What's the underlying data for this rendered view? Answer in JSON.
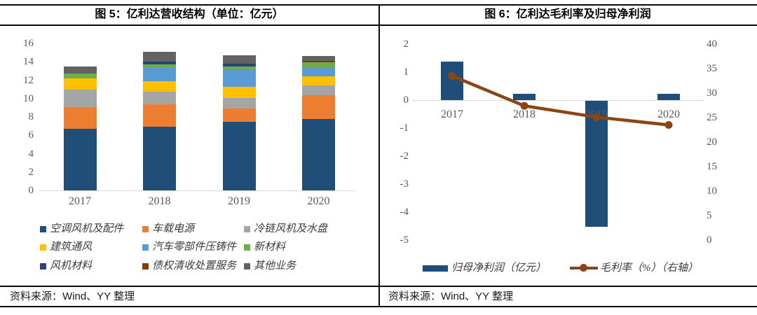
{
  "panels": {
    "left": {
      "title": "图 5：亿利达营收结构（单位：亿元）",
      "source": "资料来源：Wind、YY 整理"
    },
    "right": {
      "title": "图 6：亿利达毛利率及归母净利润",
      "source": "资料来源：Wind、YY 整理"
    }
  },
  "colors": {
    "border": "#0a0a0a",
    "axis_line": "#d9d9d9",
    "tick_text": "#595959",
    "bar_blue": "#1F4E79",
    "line_brown": "#8B4513"
  },
  "chart_data": [
    {
      "type": "bar",
      "subtype": "stacked",
      "title": "图 5：亿利达营收结构（单位：亿元）",
      "categories": [
        "2017",
        "2018",
        "2019",
        "2020"
      ],
      "series": [
        {
          "name": "空调风机及配件",
          "color": "#1F4E79",
          "values": [
            6.7,
            6.9,
            7.5,
            7.8
          ]
        },
        {
          "name": "车载电源",
          "color": "#ED7D31",
          "values": [
            2.35,
            2.45,
            1.45,
            2.6
          ]
        },
        {
          "name": "冷链风机及水盘",
          "color": "#A5A5A5",
          "values": [
            1.95,
            1.4,
            1.1,
            1.05
          ]
        },
        {
          "name": "建筑通风",
          "color": "#FFC000",
          "values": [
            1.2,
            1.15,
            1.25,
            1.0
          ]
        },
        {
          "name": "汽车零部件压铸件",
          "color": "#5B9BD5",
          "values": [
            0,
            1.5,
            1.85,
            0.9
          ]
        },
        {
          "name": "新材料",
          "color": "#70AD47",
          "values": [
            0.5,
            0.35,
            0.35,
            0.6
          ]
        },
        {
          "name": "风机材料",
          "color": "#264478",
          "values": [
            0,
            0.25,
            0.3,
            0
          ]
        },
        {
          "name": "债权清收处置服务",
          "color": "#843C0C",
          "values": [
            0,
            0,
            0,
            0.15
          ]
        },
        {
          "name": "其他业务",
          "color": "#636363",
          "values": [
            0.8,
            1.1,
            0.9,
            0.55
          ]
        }
      ],
      "ylim": [
        0,
        16
      ],
      "ytick_step": 2,
      "grid": false,
      "legend_position": "bottom"
    },
    {
      "type": "bar",
      "subtype": "bar-line-combo",
      "title": "图 6：亿利达毛利率及归母净利润",
      "categories": [
        "2017",
        "2018",
        "2019",
        "2020"
      ],
      "series": [
        {
          "name": "归母净利润（亿元）",
          "kind": "bar",
          "axis": "left",
          "color": "#1F4E79",
          "values": [
            1.38,
            0.22,
            -4.5,
            0.22
          ]
        },
        {
          "name": "毛利率（%）（右轴）",
          "kind": "line",
          "axis": "right",
          "color": "#8B4513",
          "values": [
            33.5,
            27.4,
            25.1,
            23.5
          ]
        }
      ],
      "left_ylim": [
        -5,
        2
      ],
      "left_tick_step": 1,
      "right_ylim": [
        0,
        40
      ],
      "right_tick_step": 5,
      "grid": false,
      "legend_position": "bottom"
    }
  ]
}
